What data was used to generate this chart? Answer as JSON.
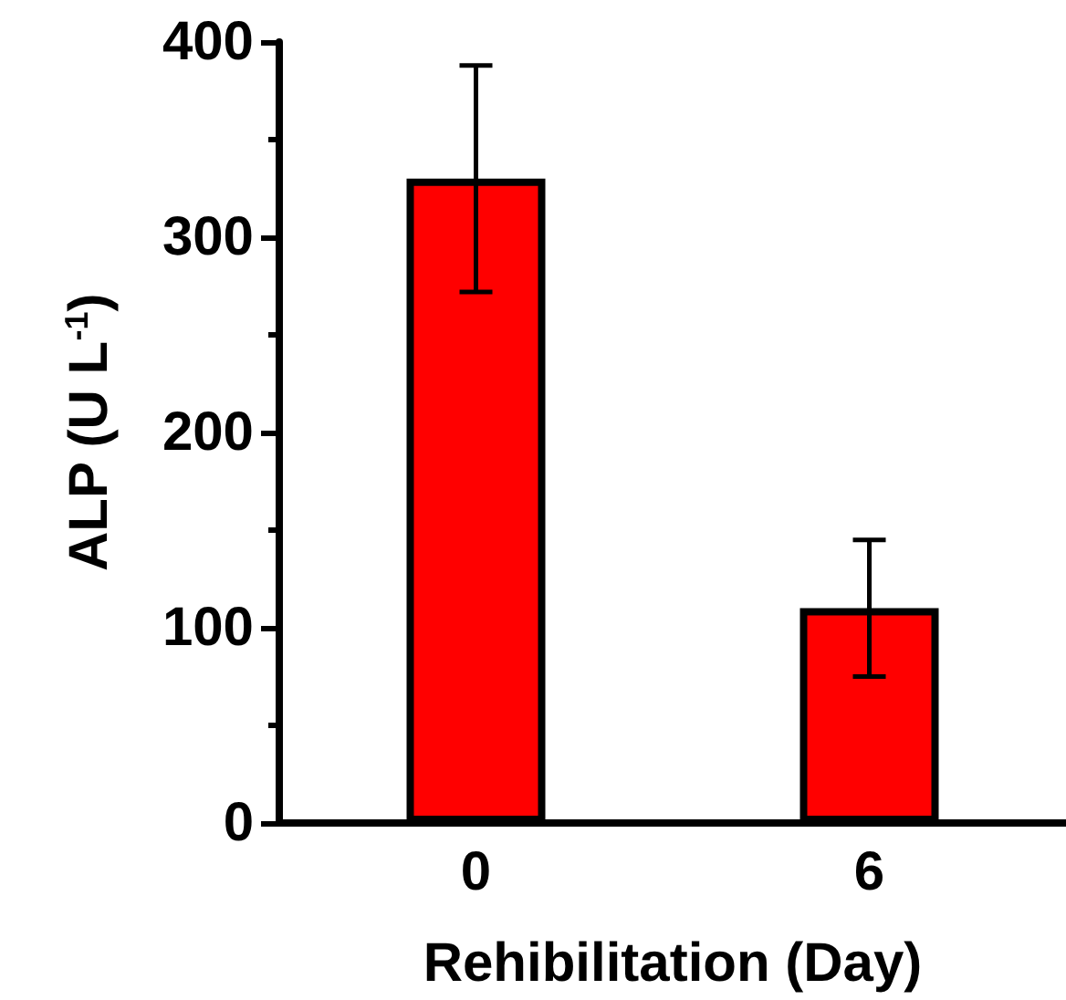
{
  "chart_data": {
    "type": "bar",
    "xlabel": "Rehibilitation (Day)",
    "ylabel": "ALP (U L$^{-1}$)",
    "categories": [
      "0",
      "6"
    ],
    "values": [
      330,
      110
    ],
    "errors": [
      58,
      35
    ],
    "color": "#ff0000",
    "ylim": [
      0,
      400
    ],
    "yticks": [
      0,
      100,
      200,
      300,
      400
    ],
    "grid": false
  }
}
